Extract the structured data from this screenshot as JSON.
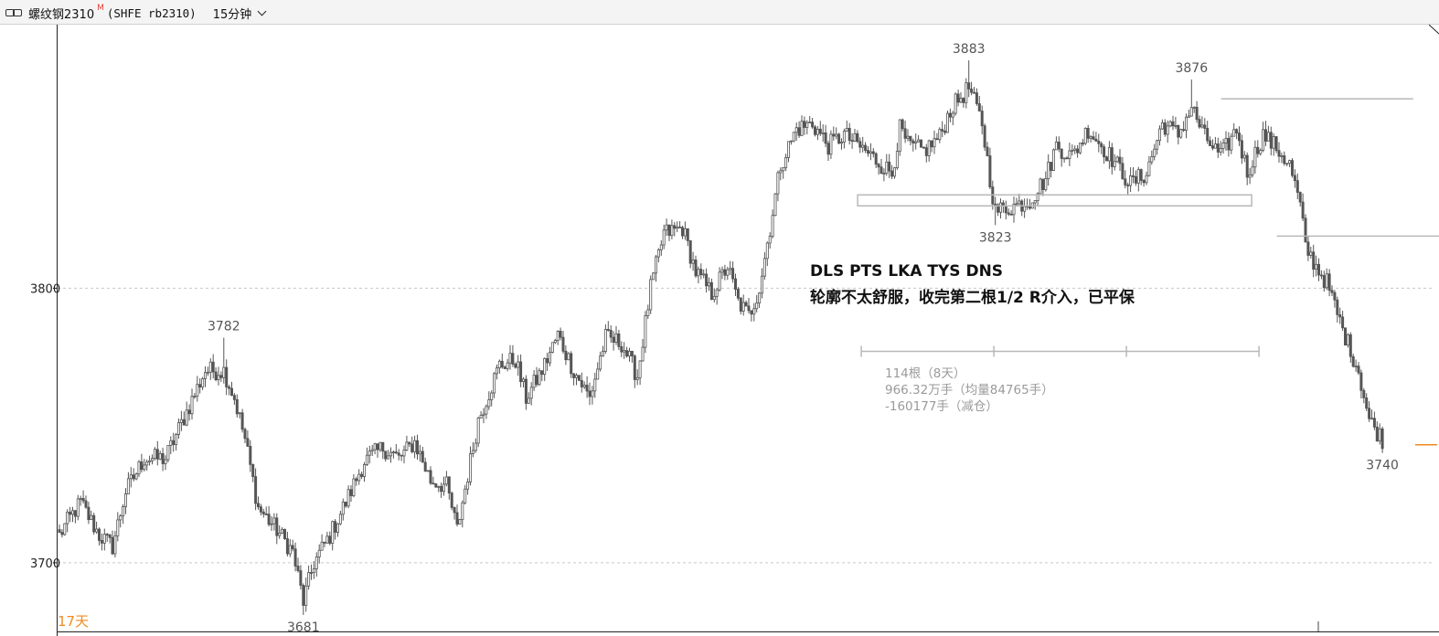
{
  "header": {
    "link_icon": "link-icon",
    "symbol_name": "螺纹钢2310",
    "symbol_flag": "M",
    "symbol_code": "(SHFE rb2310)",
    "period": "15分钟",
    "dropdown_icon": "chevron-down-icon"
  },
  "chart_data": {
    "type": "candlestick",
    "title": "",
    "y_ticks": [
      {
        "value": 3700,
        "label": "3700"
      },
      {
        "value": 3800,
        "label": "3800"
      }
    ],
    "ylim": [
      3675,
      3896
    ],
    "grid": "dashed horizontal at 3700 and 3800",
    "colors": {
      "candle": "#555555",
      "lines": "#b8b8b8",
      "accent": "#f08a24"
    },
    "price_labels": [
      {
        "label": "3782",
        "bar": 62,
        "value": 3782,
        "pos": "above"
      },
      {
        "label": "3681",
        "bar": 92,
        "value": 3681,
        "pos": "below"
      },
      {
        "label": "3883",
        "bar": 343,
        "value": 3883,
        "pos": "above"
      },
      {
        "label": "3823",
        "bar": 353,
        "value": 3823,
        "pos": "below"
      },
      {
        "label": "3876",
        "bar": 427,
        "value": 3876,
        "pos": "above"
      },
      {
        "label": "3740",
        "bar": 499,
        "value": 3740,
        "pos": "below"
      }
    ],
    "anchors": [
      [
        0,
        3710
      ],
      [
        3,
        3715
      ],
      [
        8,
        3722
      ],
      [
        15,
        3710
      ],
      [
        20,
        3706
      ],
      [
        25,
        3726
      ],
      [
        32,
        3738
      ],
      [
        40,
        3738
      ],
      [
        48,
        3755
      ],
      [
        55,
        3770
      ],
      [
        62,
        3770
      ],
      [
        66,
        3760
      ],
      [
        70,
        3745
      ],
      [
        75,
        3720
      ],
      [
        82,
        3712
      ],
      [
        88,
        3704
      ],
      [
        92,
        3686
      ],
      [
        96,
        3700
      ],
      [
        102,
        3710
      ],
      [
        108,
        3722
      ],
      [
        115,
        3737
      ],
      [
        122,
        3742
      ],
      [
        128,
        3738
      ],
      [
        134,
        3744
      ],
      [
        140,
        3730
      ],
      [
        146,
        3728
      ],
      [
        150,
        3712
      ],
      [
        158,
        3752
      ],
      [
        166,
        3772
      ],
      [
        172,
        3774
      ],
      [
        176,
        3760
      ],
      [
        182,
        3770
      ],
      [
        188,
        3783
      ],
      [
        194,
        3770
      ],
      [
        200,
        3760
      ],
      [
        206,
        3782
      ],
      [
        212,
        3780
      ],
      [
        218,
        3768
      ],
      [
        223,
        3800
      ],
      [
        228,
        3820
      ],
      [
        235,
        3822
      ],
      [
        240,
        3806
      ],
      [
        246,
        3798
      ],
      [
        252,
        3808
      ],
      [
        256,
        3795
      ],
      [
        260,
        3790
      ],
      [
        264,
        3800
      ],
      [
        268,
        3822
      ],
      [
        272,
        3845
      ],
      [
        278,
        3858
      ],
      [
        284,
        3860
      ],
      [
        290,
        3852
      ],
      [
        296,
        3856
      ],
      [
        304,
        3850
      ],
      [
        310,
        3845
      ],
      [
        314,
        3842
      ],
      [
        317,
        3858
      ],
      [
        320,
        3852
      ],
      [
        326,
        3850
      ],
      [
        332,
        3855
      ],
      [
        336,
        3865
      ],
      [
        343,
        3873
      ],
      [
        348,
        3860
      ],
      [
        351,
        3840
      ],
      [
        353,
        3828
      ],
      [
        360,
        3830
      ],
      [
        366,
        3832
      ],
      [
        372,
        3840
      ],
      [
        376,
        3852
      ],
      [
        382,
        3848
      ],
      [
        388,
        3858
      ],
      [
        393,
        3852
      ],
      [
        398,
        3846
      ],
      [
        404,
        3838
      ],
      [
        410,
        3842
      ],
      [
        416,
        3860
      ],
      [
        422,
        3856
      ],
      [
        427,
        3866
      ],
      [
        432,
        3855
      ],
      [
        438,
        3848
      ],
      [
        444,
        3858
      ],
      [
        448,
        3842
      ],
      [
        454,
        3856
      ],
      [
        460,
        3850
      ],
      [
        464,
        3845
      ],
      [
        468,
        3830
      ],
      [
        470,
        3815
      ],
      [
        474,
        3808
      ],
      [
        478,
        3802
      ],
      [
        484,
        3785
      ],
      [
        490,
        3770
      ],
      [
        494,
        3752
      ],
      [
        499,
        3745
      ]
    ],
    "annotations": {
      "setup_line1": "DLS PTS LKA TYS DNS",
      "setup_line2": "轮廓不太舒服，收完第二根1/2 R介入，已平保",
      "range_stats": [
        "114根（8天）",
        "966.32万手（均量84765手）",
        "-160177手（减仓）"
      ],
      "days_label": "17天",
      "range_box": {
        "bar_from": 299,
        "bar_to": 449,
        "top": 3834,
        "bottom": 3830
      },
      "measure_bar": {
        "bar_from": 299,
        "bar_to": 449,
        "value": 3777,
        "ticks": 4
      },
      "level_lines": [
        {
          "bar_from": 434,
          "bar_to": 502,
          "value": 3869
        },
        {
          "bar_from": 455,
          "bar_to": 520,
          "value": 3819
        }
      ],
      "right_marker": {
        "value": 3743
      }
    }
  }
}
